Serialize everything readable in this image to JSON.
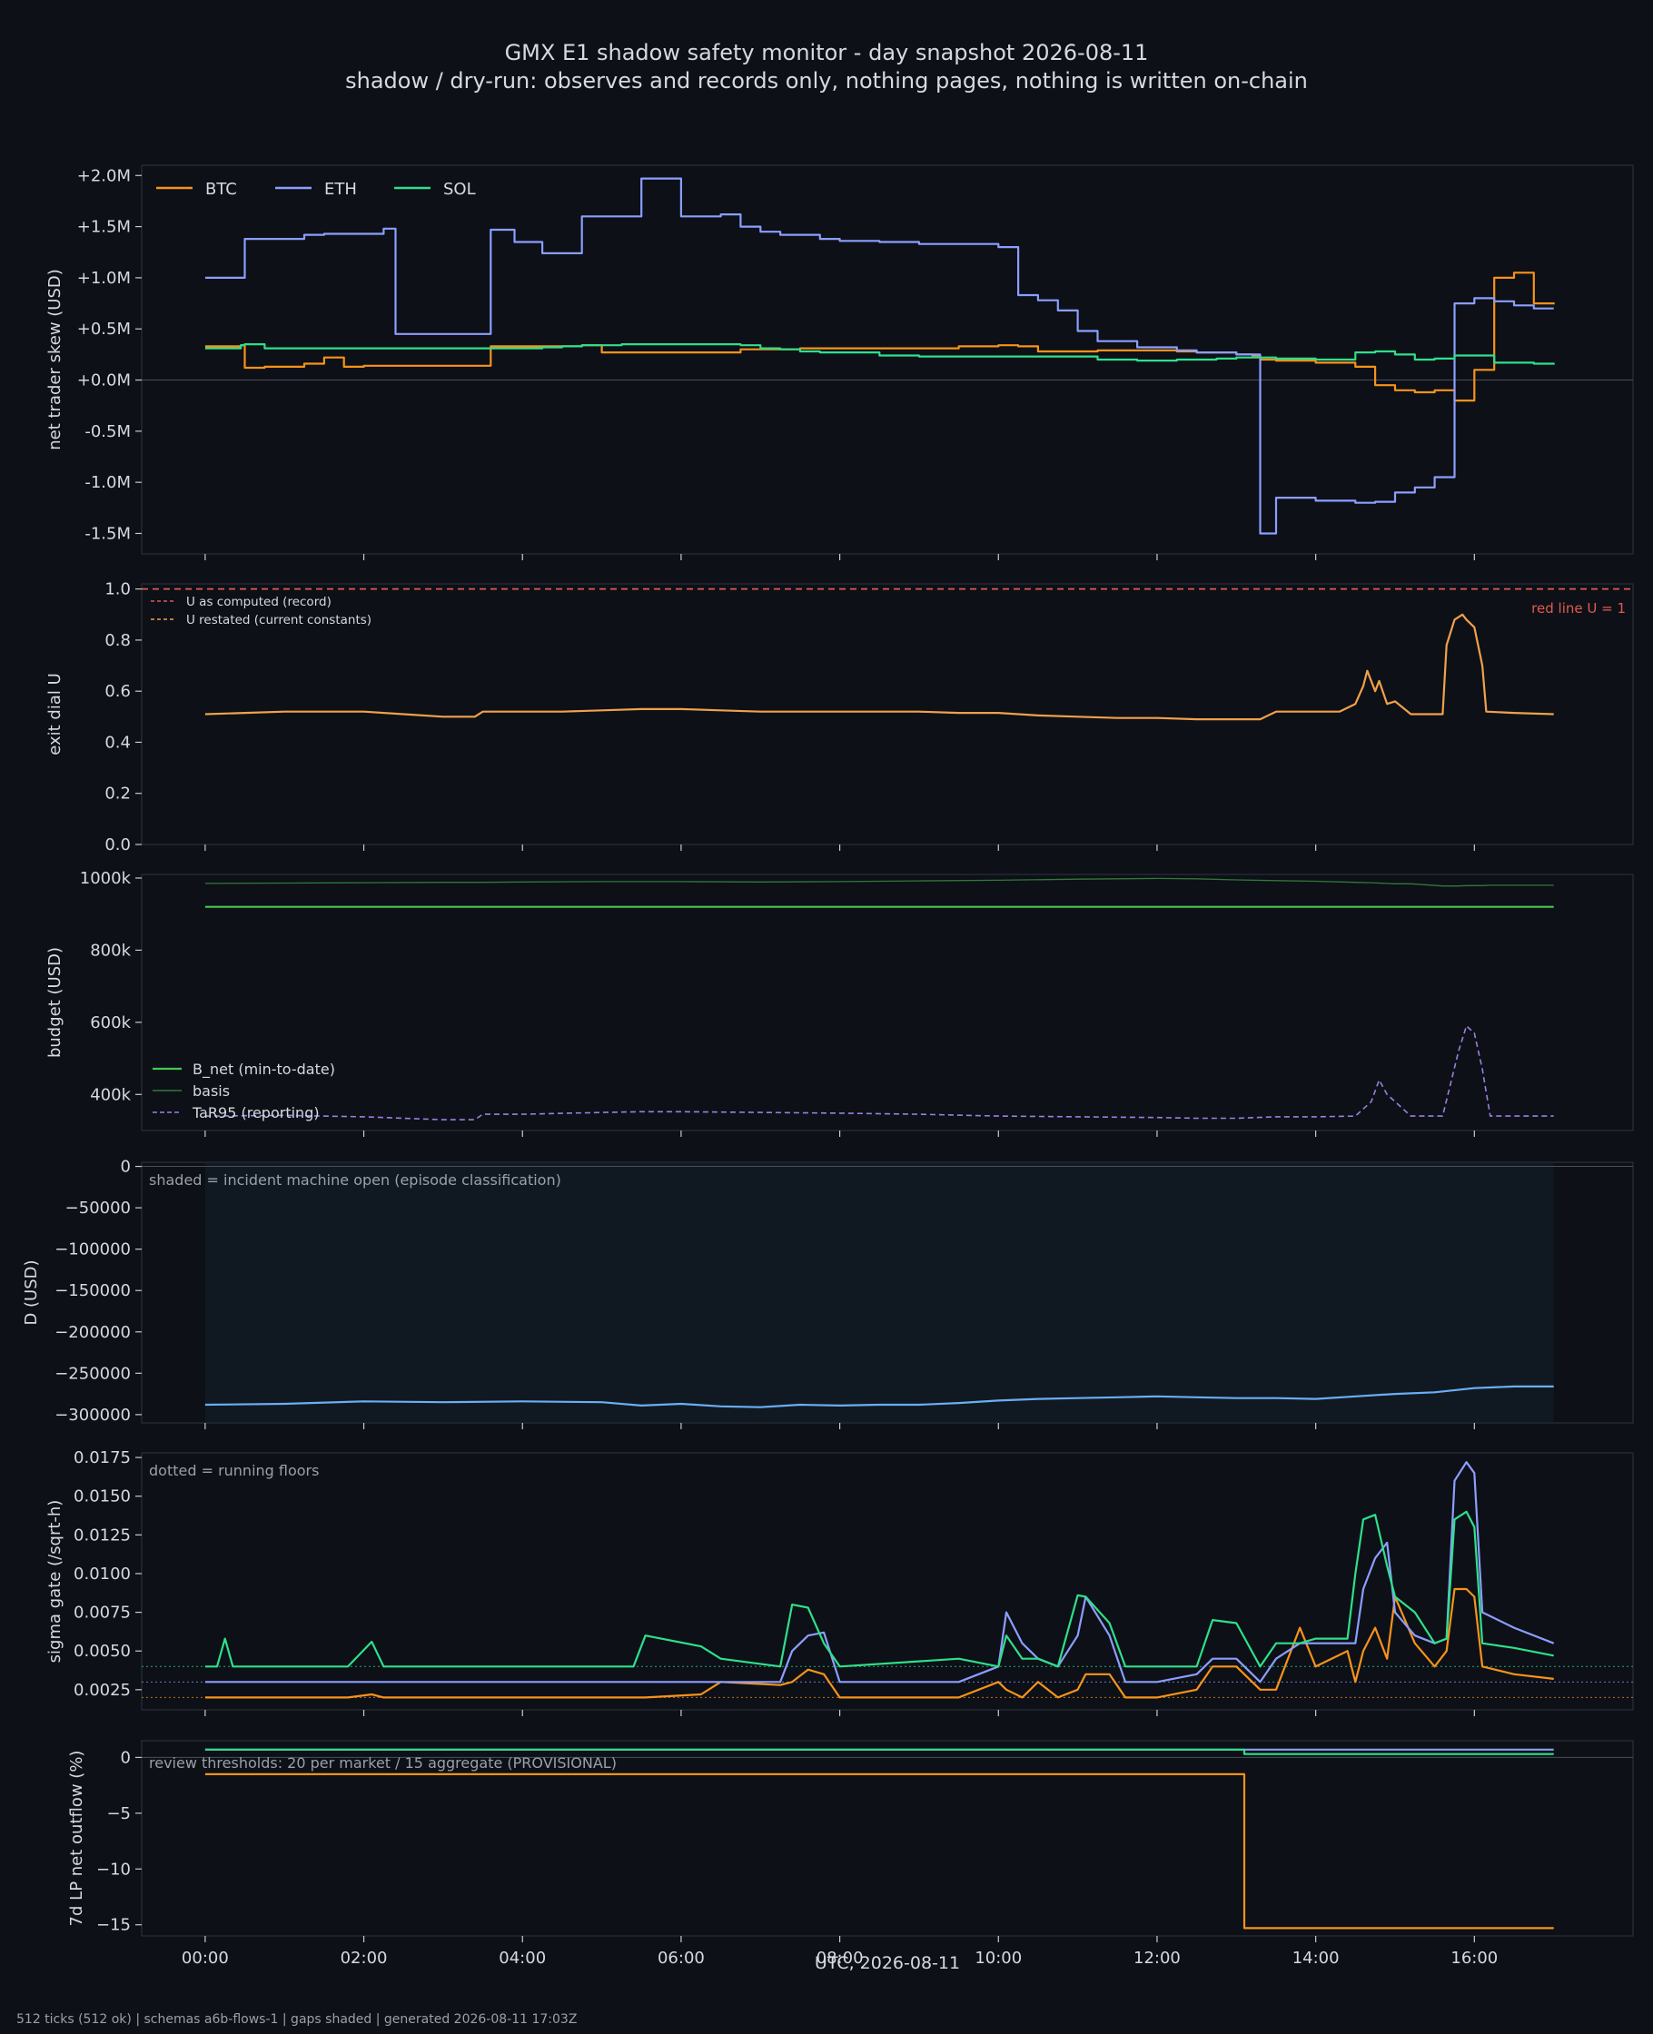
{
  "title": "GMX E1 shadow safety monitor - day snapshot 2026-08-11",
  "subtitle": "shadow / dry-run: observes and records only, nothing pages, nothing is written on-chain",
  "footer": "512 ticks (512 ok) | schemas a6b-flows-1 | gaps shaded | generated 2026-08-11 17:03Z",
  "xlabel": "UTC, 2026-08-11",
  "colors": {
    "background": "#0d1017",
    "text": "#d6d9de",
    "btc": "#f7931a",
    "eth": "#8c9eff",
    "sol": "#2ee08a",
    "u_record": "#e05a4f",
    "u_restated": "#f2a14a",
    "b_net": "#46c84e",
    "basis": "#2f7a3a",
    "tar95": "#9b7fe0",
    "d": "#6aaef7"
  },
  "chart_data": [
    {
      "type": "line",
      "ylabel": "net trader skew (USD)",
      "x_hours": [
        0,
        0.45,
        0.5,
        0.75,
        1.25,
        1.5,
        1.75,
        2.0,
        2.25,
        2.4,
        2.5,
        3.0,
        3.5,
        3.6,
        3.9,
        4.0,
        4.25,
        4.5,
        4.75,
        5.0,
        5.25,
        5.5,
        5.75,
        6.0,
        6.25,
        6.5,
        6.75,
        7.0,
        7.25,
        7.5,
        7.75,
        8.0,
        8.5,
        9.0,
        9.5,
        10.0,
        10.25,
        10.5,
        10.75,
        11.0,
        11.25,
        11.5,
        11.75,
        12.0,
        12.25,
        12.5,
        12.75,
        13.0,
        13.2,
        13.3,
        13.5,
        14.0,
        14.5,
        14.75,
        15.0,
        15.25,
        15.5,
        15.75,
        16.0,
        16.25,
        16.5,
        16.75,
        17.0
      ],
      "yticks": [
        "+2.0M",
        "+1.5M",
        "+1.0M",
        "+0.5M",
        "+0.0M",
        "-0.5M",
        "-1.0M",
        "-1.5M"
      ],
      "ytick_values": [
        2.0,
        1.5,
        1.0,
        0.5,
        0.0,
        -0.5,
        -1.0,
        -1.5
      ],
      "ylim": [
        -1.7,
        2.1
      ],
      "xlim": [
        -0.8,
        18.0
      ],
      "xticks": [
        "00:00",
        "02:00",
        "04:00",
        "06:00",
        "08:00",
        "10:00",
        "12:00",
        "14:00",
        "16:00"
      ],
      "legend": "top-left",
      "series": [
        {
          "name": "BTC",
          "values": [
            0.33,
            0.34,
            0.12,
            0.13,
            0.16,
            0.22,
            0.13,
            0.14,
            0.14,
            0.14,
            0.14,
            0.14,
            0.14,
            0.33,
            0.33,
            0.33,
            0.33,
            0.33,
            0.34,
            0.27,
            0.27,
            0.27,
            0.27,
            0.27,
            0.27,
            0.27,
            0.3,
            0.3,
            0.3,
            0.31,
            0.31,
            0.31,
            0.31,
            0.31,
            0.33,
            0.34,
            0.33,
            0.28,
            0.28,
            0.28,
            0.29,
            0.29,
            0.29,
            0.29,
            0.28,
            0.27,
            0.27,
            0.25,
            0.24,
            0.2,
            0.19,
            0.17,
            0.13,
            -0.05,
            -0.1,
            -0.12,
            -0.1,
            -0.2,
            0.1,
            1.0,
            1.05,
            0.75,
            0.74
          ]
        },
        {
          "name": "ETH",
          "values": [
            1.0,
            1.0,
            1.38,
            1.38,
            1.42,
            1.43,
            1.43,
            1.43,
            1.48,
            0.45,
            0.45,
            0.45,
            0.45,
            1.47,
            1.35,
            1.35,
            1.24,
            1.24,
            1.6,
            1.6,
            1.6,
            1.97,
            1.97,
            1.6,
            1.6,
            1.62,
            1.5,
            1.45,
            1.42,
            1.42,
            1.38,
            1.36,
            1.35,
            1.33,
            1.33,
            1.3,
            0.83,
            0.78,
            0.68,
            0.48,
            0.38,
            0.38,
            0.32,
            0.32,
            0.29,
            0.27,
            0.27,
            0.25,
            0.25,
            -1.5,
            -1.15,
            -1.18,
            -1.2,
            -1.19,
            -1.1,
            -1.05,
            -0.95,
            0.75,
            0.8,
            0.77,
            0.73,
            0.7,
            0.7
          ]
        },
        {
          "name": "SOL",
          "values": [
            0.31,
            0.34,
            0.35,
            0.31,
            0.31,
            0.31,
            0.31,
            0.31,
            0.31,
            0.31,
            0.31,
            0.31,
            0.31,
            0.31,
            0.31,
            0.31,
            0.32,
            0.33,
            0.34,
            0.34,
            0.35,
            0.35,
            0.35,
            0.35,
            0.35,
            0.35,
            0.34,
            0.31,
            0.3,
            0.28,
            0.27,
            0.27,
            0.24,
            0.23,
            0.23,
            0.23,
            0.23,
            0.23,
            0.23,
            0.23,
            0.2,
            0.2,
            0.19,
            0.19,
            0.2,
            0.2,
            0.21,
            0.22,
            0.22,
            0.22,
            0.21,
            0.2,
            0.27,
            0.28,
            0.25,
            0.2,
            0.21,
            0.24,
            0.24,
            0.17,
            0.17,
            0.16,
            0.15
          ]
        }
      ]
    },
    {
      "type": "line",
      "ylabel": "exit dial U",
      "ylim": [
        0.0,
        1.02
      ],
      "yticks": [
        "1.0",
        "0.8",
        "0.6",
        "0.4",
        "0.2",
        "0.0"
      ],
      "ytick_values": [
        1.0,
        0.8,
        0.6,
        0.4,
        0.2,
        0.0
      ],
      "redline_label": "red line U = 1",
      "legend": "top-left",
      "x_hours": [
        0,
        0.5,
        1.0,
        1.5,
        2.0,
        2.5,
        3.0,
        3.4,
        3.5,
        4.0,
        4.5,
        5.0,
        5.5,
        6.0,
        6.5,
        7.0,
        7.5,
        8.0,
        8.5,
        9.0,
        9.5,
        10.0,
        10.5,
        11.0,
        11.5,
        12.0,
        12.5,
        13.0,
        13.3,
        13.5,
        13.8,
        14.0,
        14.3,
        14.5,
        14.6,
        14.65,
        14.75,
        14.8,
        14.9,
        15.0,
        15.2,
        15.4,
        15.6,
        15.65,
        15.75,
        15.85,
        15.9,
        16.0,
        16.1,
        16.15,
        16.5,
        17.0
      ],
      "series": [
        {
          "name": "U as computed (record)",
          "values": [
            1,
            1,
            1,
            1,
            1,
            1,
            1,
            1,
            1,
            1,
            1,
            1,
            1,
            1,
            1,
            1,
            1,
            1,
            1,
            1,
            1,
            1,
            1,
            1,
            1,
            1,
            1,
            1,
            1,
            1,
            1,
            1,
            1,
            1,
            1,
            1,
            1,
            1,
            1,
            1,
            1,
            1,
            1,
            1,
            1,
            1,
            1,
            1,
            1,
            1,
            1,
            1
          ]
        },
        {
          "name": "U restated (current constants)",
          "values": [
            0.51,
            0.515,
            0.52,
            0.52,
            0.52,
            0.51,
            0.5,
            0.5,
            0.52,
            0.52,
            0.52,
            0.525,
            0.53,
            0.53,
            0.525,
            0.52,
            0.52,
            0.52,
            0.52,
            0.52,
            0.515,
            0.515,
            0.505,
            0.5,
            0.495,
            0.495,
            0.49,
            0.49,
            0.49,
            0.52,
            0.52,
            0.52,
            0.52,
            0.55,
            0.62,
            0.68,
            0.6,
            0.64,
            0.55,
            0.56,
            0.51,
            0.51,
            0.51,
            0.78,
            0.88,
            0.9,
            0.88,
            0.85,
            0.7,
            0.52,
            0.515,
            0.51
          ]
        }
      ]
    },
    {
      "type": "line",
      "ylabel": "budget (USD)",
      "ylim": [
        300000,
        1010000
      ],
      "yticks": [
        "1000k",
        "800k",
        "600k",
        "400k"
      ],
      "ytick_values": [
        1000000,
        800000,
        600000,
        400000
      ],
      "legend": "bottom-left",
      "x_hours": [
        0,
        1,
        2,
        3,
        3.4,
        3.5,
        4,
        5,
        5.5,
        6,
        7,
        8,
        9,
        10,
        11,
        12,
        12.5,
        13,
        13.5,
        14,
        14.5,
        14.7,
        14.8,
        14.9,
        15.0,
        15.2,
        15.6,
        15.8,
        15.9,
        16.0,
        16.1,
        16.2,
        17.0
      ],
      "series": [
        {
          "name": "B_net (min-to-date)",
          "values": [
            920000,
            920000,
            920000,
            920000,
            920000,
            920000,
            920000,
            920000,
            920000,
            920000,
            920000,
            920000,
            920000,
            920000,
            920000,
            920000,
            920000,
            920000,
            920000,
            920000,
            920000,
            920000,
            920000,
            920000,
            920000,
            920000,
            920000,
            920000,
            920000,
            920000,
            920000,
            920000,
            920000
          ]
        },
        {
          "name": "basis",
          "values": [
            985000,
            986000,
            987000,
            988000,
            988000,
            988000,
            989000,
            990000,
            990000,
            990000,
            989000,
            990000,
            992000,
            994000,
            997000,
            999000,
            998000,
            995000,
            993000,
            991000,
            988000,
            987000,
            986000,
            985000,
            984000,
            984000,
            978000,
            978000,
            979000,
            979000,
            979000,
            980000,
            980000
          ]
        },
        {
          "name": "TaR95 (reporting)",
          "values": [
            340000,
            342000,
            338000,
            330000,
            330000,
            345000,
            345000,
            350000,
            352000,
            352000,
            350000,
            348000,
            345000,
            340000,
            338000,
            336000,
            334000,
            334000,
            338000,
            338000,
            340000,
            380000,
            440000,
            400000,
            380000,
            340000,
            340000,
            520000,
            590000,
            570000,
            470000,
            340000,
            340000
          ]
        }
      ]
    },
    {
      "type": "line",
      "ylabel": "D (USD)",
      "ylim": [
        -310000,
        5000
      ],
      "yticks": [
        "0",
        "−50000",
        "−100000",
        "−150000",
        "−200000",
        "−250000",
        "−300000"
      ],
      "ytick_values": [
        0,
        -50000,
        -100000,
        -150000,
        -200000,
        -250000,
        -300000
      ],
      "annotation": "shaded = incident machine open (episode classification)",
      "x_hours": [
        0,
        1,
        2,
        3,
        4,
        5,
        5.5,
        6,
        6.5,
        7,
        7.5,
        8,
        8.5,
        9,
        9.5,
        10,
        10.5,
        11,
        11.5,
        12,
        12.5,
        13,
        13.5,
        14,
        14.5,
        15,
        15.5,
        16,
        16.5,
        17
      ],
      "series": [
        {
          "name": "D",
          "values": [
            -288000,
            -287000,
            -284000,
            -285000,
            -284000,
            -285000,
            -289000,
            -287000,
            -290000,
            -291000,
            -288000,
            -289000,
            -288000,
            -288000,
            -286000,
            -283000,
            -281000,
            -280000,
            -279000,
            -278000,
            -279000,
            -280000,
            -280000,
            -281000,
            -278000,
            -275000,
            -273000,
            -268000,
            -266000,
            -266000
          ]
        }
      ]
    },
    {
      "type": "line",
      "ylabel": "sigma gate (/sqrt-h)",
      "ylim": [
        0.0012,
        0.0178
      ],
      "yticks": [
        "0.0175",
        "0.0150",
        "0.0125",
        "0.0100",
        "0.0075",
        "0.0050",
        "0.0025"
      ],
      "ytick_values": [
        0.0175,
        0.015,
        0.0125,
        0.01,
        0.0075,
        0.005,
        0.0025
      ],
      "annotation": "dotted = running floors",
      "floors": {
        "BTC": 0.002,
        "ETH": 0.003,
        "SOL": 0.004
      },
      "x_hours": [
        0,
        0.15,
        0.25,
        0.35,
        1.8,
        2.1,
        2.25,
        5.4,
        5.55,
        6.25,
        6.5,
        7.25,
        7.4,
        7.6,
        7.8,
        8.0,
        9.5,
        10.0,
        10.1,
        10.3,
        10.5,
        10.75,
        11.0,
        11.1,
        11.4,
        11.6,
        12.0,
        12.5,
        12.7,
        13.0,
        13.3,
        13.5,
        13.8,
        14.0,
        14.4,
        14.5,
        14.6,
        14.75,
        14.9,
        15.0,
        15.25,
        15.5,
        15.65,
        15.75,
        15.9,
        16.0,
        16.1,
        16.5,
        17.0
      ],
      "series": [
        {
          "name": "BTC",
          "values": [
            0.002,
            0.002,
            0.002,
            0.002,
            0.002,
            0.0022,
            0.002,
            0.002,
            0.002,
            0.0022,
            0.003,
            0.0028,
            0.003,
            0.0038,
            0.0035,
            0.002,
            0.002,
            0.003,
            0.0025,
            0.002,
            0.003,
            0.002,
            0.0025,
            0.0035,
            0.0035,
            0.002,
            0.002,
            0.0025,
            0.004,
            0.004,
            0.0025,
            0.0025,
            0.0065,
            0.004,
            0.005,
            0.003,
            0.005,
            0.0065,
            0.0045,
            0.0085,
            0.0055,
            0.004,
            0.005,
            0.009,
            0.009,
            0.0085,
            0.004,
            0.0035,
            0.0032
          ]
        },
        {
          "name": "ETH",
          "values": [
            0.003,
            0.003,
            0.003,
            0.003,
            0.003,
            0.003,
            0.003,
            0.003,
            0.003,
            0.003,
            0.003,
            0.003,
            0.005,
            0.006,
            0.0062,
            0.003,
            0.003,
            0.004,
            0.0075,
            0.0055,
            0.0045,
            0.004,
            0.006,
            0.0085,
            0.006,
            0.003,
            0.003,
            0.0035,
            0.0045,
            0.0045,
            0.003,
            0.0045,
            0.0055,
            0.0055,
            0.0055,
            0.0055,
            0.009,
            0.011,
            0.012,
            0.0075,
            0.006,
            0.0055,
            0.0058,
            0.016,
            0.0172,
            0.0165,
            0.0075,
            0.0065,
            0.0055
          ]
        },
        {
          "name": "SOL",
          "values": [
            0.004,
            0.004,
            0.0058,
            0.004,
            0.004,
            0.0056,
            0.004,
            0.004,
            0.006,
            0.0053,
            0.0045,
            0.004,
            0.008,
            0.0078,
            0.0055,
            0.004,
            0.0045,
            0.004,
            0.006,
            0.0045,
            0.0045,
            0.004,
            0.0086,
            0.0085,
            0.0068,
            0.004,
            0.004,
            0.004,
            0.007,
            0.0068,
            0.004,
            0.0055,
            0.0055,
            0.0058,
            0.0058,
            0.01,
            0.0135,
            0.0138,
            0.0105,
            0.0085,
            0.0075,
            0.0055,
            0.0058,
            0.0135,
            0.014,
            0.013,
            0.0055,
            0.0052,
            0.0047
          ]
        }
      ]
    },
    {
      "type": "line",
      "ylabel": "7d LP net outflow (%)",
      "ylim": [
        -16.0,
        1.5
      ],
      "yticks": [
        "0",
        "−5",
        "−10",
        "−15"
      ],
      "ytick_values": [
        0,
        -5,
        -10,
        -15
      ],
      "annotation": "review thresholds: 20 per market / 15 aggregate (PROVISIONAL)",
      "x_hours": [
        0,
        13.1,
        13.1,
        17.0
      ],
      "series": [
        {
          "name": "BTC",
          "values": [
            -1.5,
            -1.5,
            -15.3,
            -15.3
          ]
        },
        {
          "name": "ETH",
          "values": [
            0.7,
            0.7,
            0.7,
            0.7
          ]
        },
        {
          "name": "SOL",
          "values": [
            0.7,
            0.7,
            0.3,
            0.3
          ]
        }
      ]
    }
  ]
}
